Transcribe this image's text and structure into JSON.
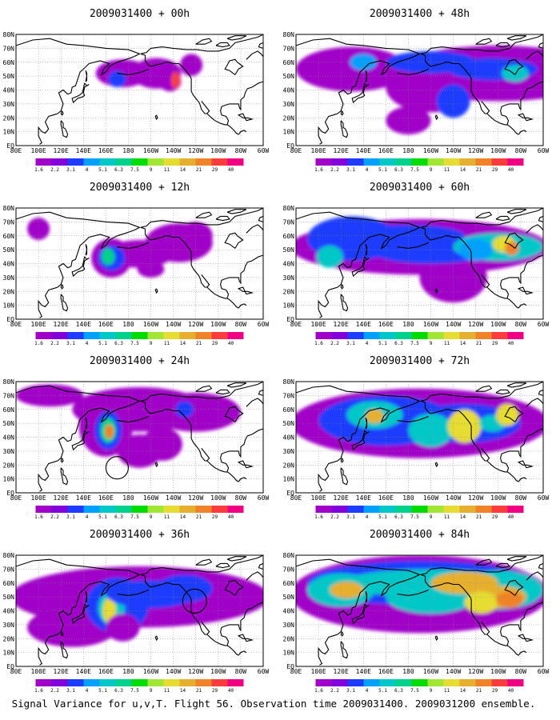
{
  "caption": "Signal Variance for u,v,T. Flight 56. Observation time 2009031400. 2009031200 ensemble.",
  "chart_data": {
    "type": "heatmap",
    "layout": "4 rows x 2 columns of map panels",
    "x_ticks": [
      "80E",
      "100E",
      "120E",
      "140E",
      "160E",
      "180",
      "160W",
      "140W",
      "120W",
      "100W",
      "80W",
      "60W"
    ],
    "y_ticks": [
      "80N",
      "70N",
      "60N",
      "50N",
      "40N",
      "30N",
      "20N",
      "10N",
      "EQ"
    ],
    "colorbar_levels": [
      "1.6",
      "2.2",
      "3.1",
      "4",
      "5.1",
      "6.3",
      "7.5",
      "9",
      "11",
      "14",
      "21",
      "29",
      "40"
    ],
    "colorbar_colors": [
      "#a000c8",
      "#8200dc",
      "#1e3cff",
      "#00a0ff",
      "#00c8c8",
      "#00d28c",
      "#00dc00",
      "#a0e632",
      "#e6dc32",
      "#e6af2d",
      "#f08228",
      "#fa3c3c",
      "#f00082"
    ],
    "panels": [
      {
        "title": "2009031400 + 00h",
        "lead_hours": 0
      },
      {
        "title": "2009031400 + 48h",
        "lead_hours": 48
      },
      {
        "title": "2009031400 + 12h",
        "lead_hours": 12
      },
      {
        "title": "2009031400 + 60h",
        "lead_hours": 60
      },
      {
        "title": "2009031400 + 24h",
        "lead_hours": 24
      },
      {
        "title": "2009031400 + 72h",
        "lead_hours": 72
      },
      {
        "title": "2009031400 + 36h",
        "lead_hours": 36
      },
      {
        "title": "2009031400 + 84h",
        "lead_hours": 84
      }
    ]
  }
}
